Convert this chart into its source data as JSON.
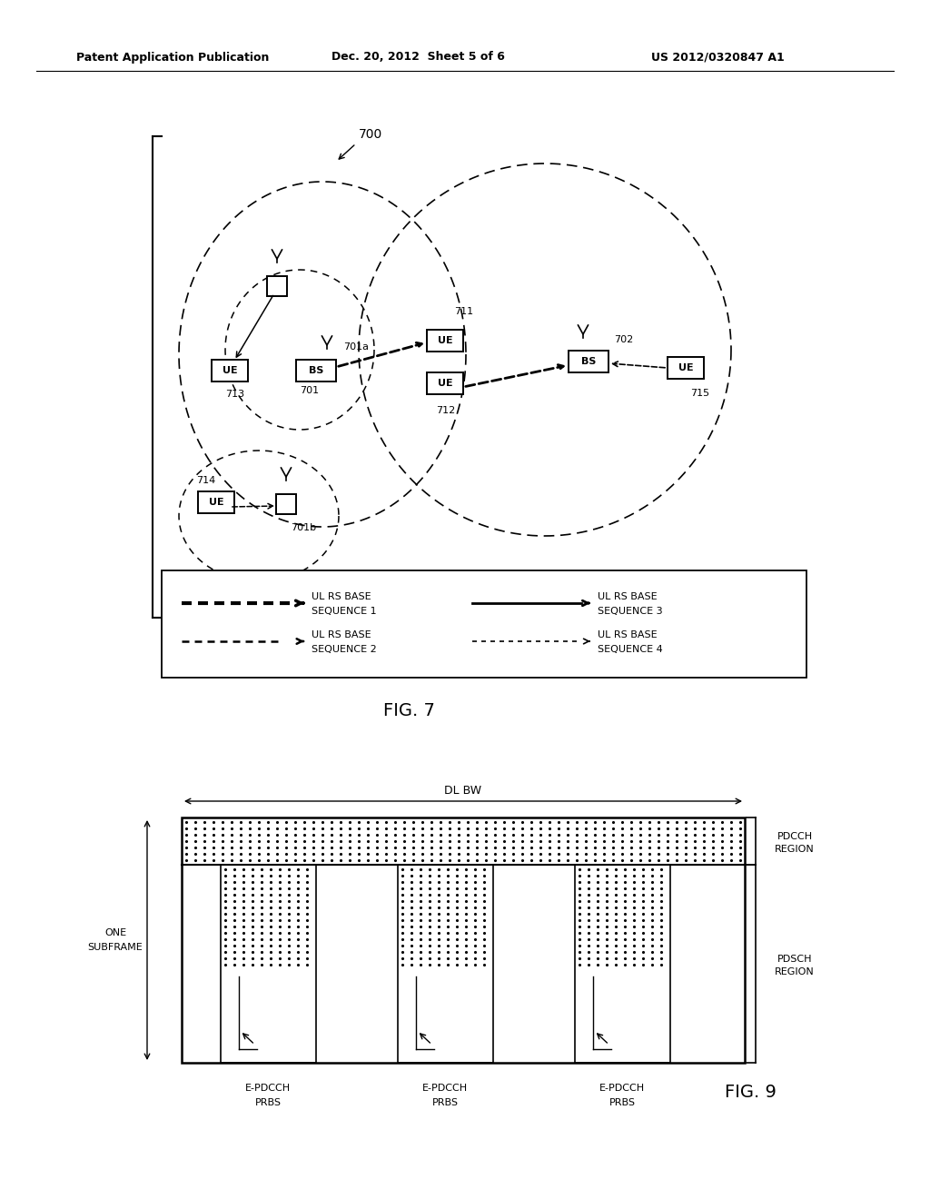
{
  "header_left": "Patent Application Publication",
  "header_center": "Dec. 20, 2012  Sheet 5 of 6",
  "header_right": "US 2012/0320847 A1",
  "fig7_label": "FIG. 7",
  "fig9_label": "FIG. 9",
  "background": "#ffffff"
}
